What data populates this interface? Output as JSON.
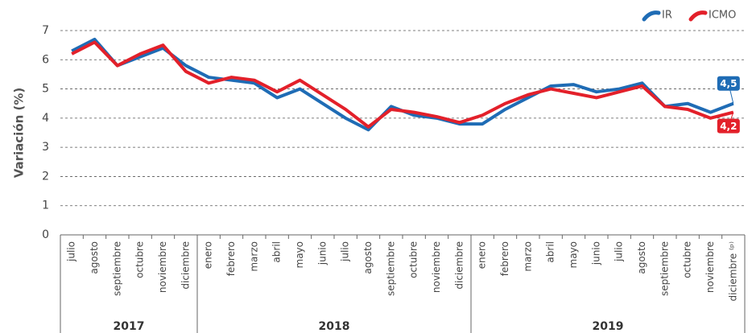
{
  "chart_data": {
    "type": "line",
    "y_label": "Variación (%)",
    "categories": [
      "julio",
      "agosto",
      "septiembre",
      "octubre",
      "noviembre",
      "diciembre",
      "enero",
      "febrero",
      "marzo",
      "abril",
      "mayo",
      "junio",
      "julio",
      "agosto",
      "septiembre",
      "octubre",
      "noviembre",
      "diciembre",
      "enero",
      "febrero",
      "marzo",
      "abril",
      "mayo",
      "junio",
      "julio",
      "agosto",
      "septiembre",
      "octubre",
      "noviembre",
      "diciembre ⁽ᵖ⁾"
    ],
    "groups": [
      {
        "label": "2017",
        "span": 6
      },
      {
        "label": "2018",
        "span": 12
      },
      {
        "label": "2019",
        "span": 12
      }
    ],
    "series": [
      {
        "name": "IR",
        "color": "#1f6cb5",
        "values": [
          6.3,
          6.7,
          5.8,
          6.1,
          6.4,
          5.8,
          5.4,
          5.3,
          5.2,
          4.7,
          5.0,
          4.5,
          4.0,
          3.6,
          4.4,
          4.1,
          4.0,
          3.8,
          3.8,
          4.3,
          4.7,
          5.1,
          5.15,
          4.9,
          5.0,
          5.2,
          4.4,
          4.5,
          4.2,
          4.5
        ],
        "value_labels": [
          null,
          null,
          null,
          null,
          null,
          null,
          null,
          null,
          null,
          null,
          null,
          null,
          null,
          null,
          null,
          null,
          null,
          null,
          null,
          null,
          null,
          null,
          null,
          null,
          null,
          null,
          null,
          null,
          null,
          "4,5"
        ]
      },
      {
        "name": "ICMO",
        "color": "#e3202a",
        "values": [
          6.2,
          6.6,
          5.8,
          6.2,
          6.5,
          5.6,
          5.2,
          5.4,
          5.3,
          4.9,
          5.3,
          4.8,
          4.3,
          3.7,
          4.3,
          4.2,
          4.05,
          3.85,
          4.1,
          4.5,
          4.8,
          5.0,
          4.85,
          4.7,
          4.9,
          5.1,
          4.4,
          4.3,
          4.0,
          4.2
        ],
        "value_labels": [
          null,
          null,
          null,
          null,
          null,
          null,
          null,
          null,
          null,
          null,
          null,
          null,
          null,
          null,
          null,
          null,
          null,
          null,
          null,
          null,
          null,
          null,
          null,
          null,
          null,
          null,
          null,
          null,
          null,
          "4,2"
        ]
      }
    ],
    "ylim": [
      0,
      7
    ],
    "yticks": [
      0,
      1,
      2,
      3,
      4,
      5,
      6,
      7
    ],
    "grid": true,
    "legend": "top-right"
  }
}
